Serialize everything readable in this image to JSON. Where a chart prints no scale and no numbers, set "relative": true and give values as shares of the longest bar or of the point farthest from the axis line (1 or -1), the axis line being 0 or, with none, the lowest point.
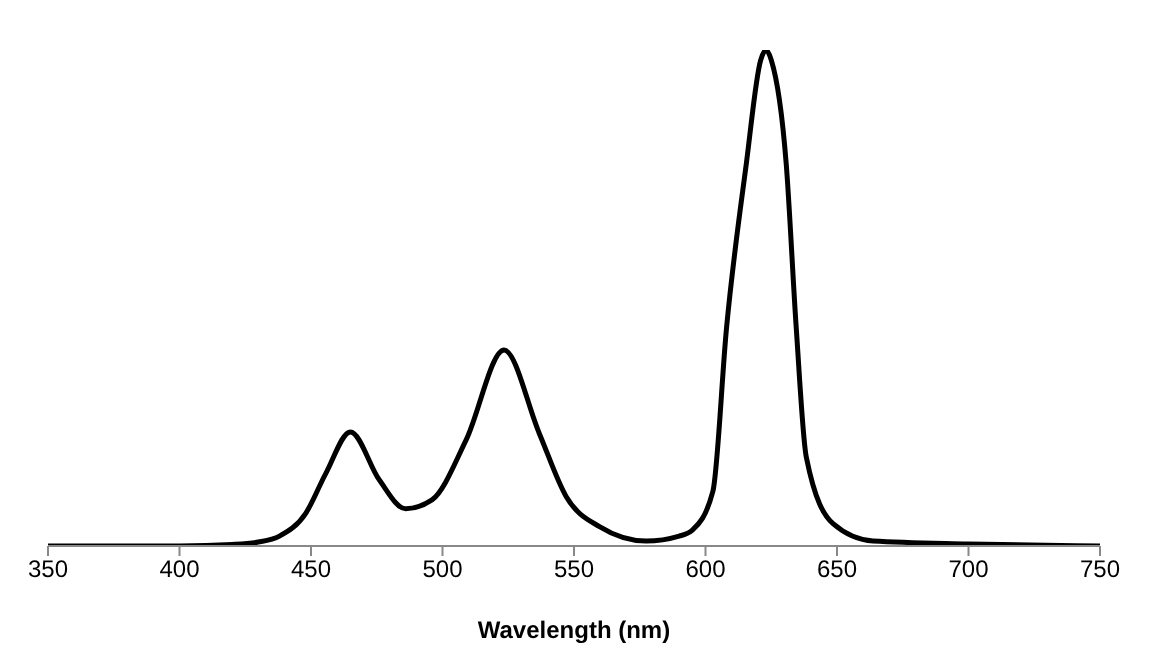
{
  "chart_data": {
    "type": "line",
    "xlabel": "Wavelength (nm)",
    "relative": true,
    "xlim": [
      350,
      750
    ],
    "xticks": [
      350,
      400,
      450,
      500,
      550,
      600,
      650,
      700,
      750
    ],
    "marker": "none",
    "line_style": "solid",
    "series": [
      {
        "color": "#000000",
        "x": [
          350,
          400,
          420,
          430,
          438,
          448,
          455.6,
          465,
          476,
          486,
          496,
          509,
          523.4,
          536.8,
          547,
          559.7,
          577.4,
          590,
          595,
          602.8,
          608,
          615.5,
          621,
          623,
          625,
          630.7,
          634.5,
          638.3,
          648.5,
          663.7,
          700,
          750
        ],
        "values": [
          0,
          0,
          0.003,
          0.008,
          0.02,
          0.066,
          0.146,
          0.23,
          0.133,
          0.075,
          0.093,
          0.214,
          0.395,
          0.227,
          0.1,
          0.039,
          0.01,
          0.02,
          0.032,
          0.11,
          0.44,
          0.77,
          0.98,
          1,
          0.98,
          0.77,
          0.44,
          0.18,
          0.045,
          0.01,
          0.004,
          0
        ]
      }
    ]
  }
}
